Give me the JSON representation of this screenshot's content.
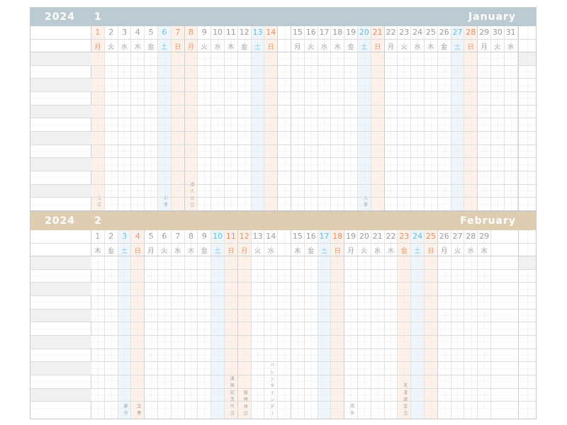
{
  "colors": {
    "january_header": "#bccbd2",
    "february_header": "#dfcdb2",
    "saturday": "#63bdec",
    "sunday_holiday": "#ef8d5e",
    "text": "#9a9a9a"
  },
  "months": [
    {
      "year": "2024",
      "number": "1",
      "name": "January",
      "header_color": "#bccbd2",
      "days": [
        {
          "d": "1",
          "w": "月",
          "t": "sun"
        },
        {
          "d": "2",
          "w": "火"
        },
        {
          "d": "3",
          "w": "水"
        },
        {
          "d": "4",
          "w": "木"
        },
        {
          "d": "5",
          "w": "金"
        },
        {
          "d": "6",
          "w": "土",
          "t": "sat"
        },
        {
          "d": "7",
          "w": "日",
          "t": "sun"
        },
        {
          "d": "8",
          "w": "月",
          "t": "sun"
        },
        {
          "d": "9",
          "w": "火"
        },
        {
          "d": "10",
          "w": "水"
        },
        {
          "d": "11",
          "w": "木"
        },
        {
          "d": "12",
          "w": "金"
        },
        {
          "d": "13",
          "w": "土",
          "t": "sat"
        },
        {
          "d": "14",
          "w": "日",
          "t": "sun"
        },
        {
          "d": "15",
          "w": "月"
        },
        {
          "d": "16",
          "w": "火"
        },
        {
          "d": "17",
          "w": "水"
        },
        {
          "d": "18",
          "w": "木"
        },
        {
          "d": "19",
          "w": "金"
        },
        {
          "d": "20",
          "w": "土",
          "t": "sat"
        },
        {
          "d": "21",
          "w": "日",
          "t": "sun"
        },
        {
          "d": "22",
          "w": "月"
        },
        {
          "d": "23",
          "w": "火"
        },
        {
          "d": "24",
          "w": "水"
        },
        {
          "d": "25",
          "w": "木"
        },
        {
          "d": "26",
          "w": "金"
        },
        {
          "d": "27",
          "w": "土",
          "t": "sat"
        },
        {
          "d": "28",
          "w": "日",
          "t": "sun"
        },
        {
          "d": "29",
          "w": "月"
        },
        {
          "d": "30",
          "w": "火"
        },
        {
          "d": "31",
          "w": "水"
        }
      ],
      "holidays": [
        {
          "day": "1",
          "label": "元日"
        },
        {
          "day": "6",
          "label": "小寒"
        },
        {
          "day": "8",
          "label": "成人の日"
        },
        {
          "day": "20",
          "label": "大寒"
        }
      ]
    },
    {
      "year": "2024",
      "number": "2",
      "name": "February",
      "header_color": "#dfcdb2",
      "days": [
        {
          "d": "1",
          "w": "木"
        },
        {
          "d": "2",
          "w": "金"
        },
        {
          "d": "3",
          "w": "土",
          "t": "sat"
        },
        {
          "d": "4",
          "w": "日",
          "t": "sun"
        },
        {
          "d": "5",
          "w": "月"
        },
        {
          "d": "6",
          "w": "火"
        },
        {
          "d": "7",
          "w": "水"
        },
        {
          "d": "8",
          "w": "木"
        },
        {
          "d": "9",
          "w": "金"
        },
        {
          "d": "10",
          "w": "土",
          "t": "sat"
        },
        {
          "d": "11",
          "w": "日",
          "t": "sun"
        },
        {
          "d": "12",
          "w": "月",
          "t": "sun"
        },
        {
          "d": "13",
          "w": "火"
        },
        {
          "d": "14",
          "w": "水"
        },
        {
          "d": "15",
          "w": "木"
        },
        {
          "d": "16",
          "w": "金"
        },
        {
          "d": "17",
          "w": "土",
          "t": "sat"
        },
        {
          "d": "18",
          "w": "日",
          "t": "sun"
        },
        {
          "d": "19",
          "w": "月"
        },
        {
          "d": "20",
          "w": "火"
        },
        {
          "d": "21",
          "w": "水"
        },
        {
          "d": "22",
          "w": "木"
        },
        {
          "d": "23",
          "w": "金",
          "t": "sun"
        },
        {
          "d": "24",
          "w": "土",
          "t": "sat"
        },
        {
          "d": "25",
          "w": "日",
          "t": "sun"
        },
        {
          "d": "26",
          "w": "月"
        },
        {
          "d": "27",
          "w": "火"
        },
        {
          "d": "28",
          "w": "水"
        },
        {
          "d": "29",
          "w": "木"
        }
      ],
      "holidays": [
        {
          "day": "3",
          "label": "節分"
        },
        {
          "day": "4",
          "label": "立春"
        },
        {
          "day": "11",
          "label": "建国記念の日"
        },
        {
          "day": "12",
          "label": "振替休日"
        },
        {
          "day": "14",
          "label": "バレンタインデー"
        },
        {
          "day": "19",
          "label": "雨水"
        },
        {
          "day": "23",
          "label": "天皇誕生日"
        }
      ]
    }
  ]
}
